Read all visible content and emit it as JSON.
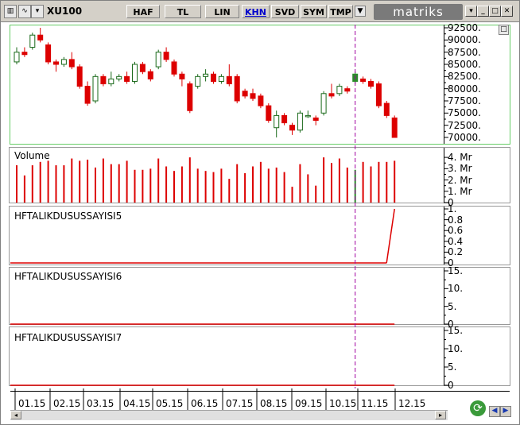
{
  "toolbar": {
    "symbol": "XU100",
    "buttons": [
      {
        "label": "HAF",
        "active": false
      },
      {
        "label": "TL",
        "active": false
      },
      {
        "label": "LIN",
        "active": false
      },
      {
        "label": "KHN",
        "active": true
      },
      {
        "label": "SVD",
        "active": false
      },
      {
        "label": "SYM",
        "active": false
      },
      {
        "label": "TMP",
        "active": false
      }
    ],
    "brand": "matriks"
  },
  "price_axis": [
    "92500.",
    "90000.",
    "87500.",
    "85000.",
    "82500.",
    "80000.",
    "77500.",
    "75000.",
    "72500.",
    "70000."
  ],
  "volume_panel": {
    "title": "Volume",
    "axis": [
      "4. Mr",
      "3. Mr",
      "2. Mr",
      "1. Mr",
      "0"
    ]
  },
  "indicator_panels": [
    {
      "title": "HFTALIKDUSUSSAYISI5",
      "axis": [
        "1.",
        "0.8",
        "0.6",
        "0.4",
        "0.2",
        "0"
      ]
    },
    {
      "title": "HFTALIKDUSUSSAYISI6",
      "axis": [
        "15.",
        "10.",
        "5.",
        "0"
      ]
    },
    {
      "title": "HFTALIKDUSUSSAYISI7",
      "axis": [
        "15.",
        "10.",
        "5.",
        "0"
      ]
    }
  ],
  "x_labels": [
    "01.15",
    "02.15",
    "03.15",
    "04.15",
    "05.15",
    "06.15",
    "07.15",
    "08.15",
    "09.15",
    "10.15",
    "11.15",
    "12.15"
  ],
  "colors": {
    "up": "#ffffff",
    "down": "#dd0000",
    "selected": "#2a8a2a",
    "cursor": "#a000a0",
    "frame": "#66cc66"
  },
  "chart_data": [
    {
      "type": "candlestick",
      "title": "XU100",
      "ylim": [
        70000,
        92500
      ],
      "candles": [
        {
          "o": 85500,
          "c": 87500,
          "h": 88500,
          "l": 85000
        },
        {
          "o": 87500,
          "c": 87000,
          "h": 88500,
          "l": 86500
        },
        {
          "o": 88500,
          "c": 91000,
          "h": 91500,
          "l": 88000
        },
        {
          "o": 91000,
          "c": 90000,
          "h": 92500,
          "l": 89500
        },
        {
          "o": 89000,
          "c": 85500,
          "h": 89500,
          "l": 85000
        },
        {
          "o": 85500,
          "c": 85000,
          "h": 86000,
          "l": 83500
        },
        {
          "o": 85000,
          "c": 86000,
          "h": 86500,
          "l": 84500
        },
        {
          "o": 86000,
          "c": 84500,
          "h": 87500,
          "l": 84000
        },
        {
          "o": 84500,
          "c": 80500,
          "h": 85000,
          "l": 80000
        },
        {
          "o": 80500,
          "c": 77000,
          "h": 81500,
          "l": 76500
        },
        {
          "o": 77500,
          "c": 82500,
          "h": 83000,
          "l": 77000
        },
        {
          "o": 82500,
          "c": 81000,
          "h": 83000,
          "l": 80500
        },
        {
          "o": 81000,
          "c": 82000,
          "h": 83500,
          "l": 80500
        },
        {
          "o": 82000,
          "c": 82500,
          "h": 83000,
          "l": 81500
        },
        {
          "o": 82500,
          "c": 81500,
          "h": 83500,
          "l": 81000
        },
        {
          "o": 81500,
          "c": 85000,
          "h": 85500,
          "l": 81000
        },
        {
          "o": 85000,
          "c": 83500,
          "h": 85500,
          "l": 83000
        },
        {
          "o": 83500,
          "c": 82000,
          "h": 84000,
          "l": 81500
        },
        {
          "o": 84500,
          "c": 87500,
          "h": 88000,
          "l": 84000
        },
        {
          "o": 87500,
          "c": 86000,
          "h": 88500,
          "l": 85500
        },
        {
          "o": 85500,
          "c": 83000,
          "h": 86000,
          "l": 82500
        },
        {
          "o": 83000,
          "c": 82000,
          "h": 83500,
          "l": 80500
        },
        {
          "o": 81000,
          "c": 75500,
          "h": 81500,
          "l": 75000
        },
        {
          "o": 80500,
          "c": 82500,
          "h": 83000,
          "l": 80000
        },
        {
          "o": 82500,
          "c": 83000,
          "h": 84000,
          "l": 81500
        },
        {
          "o": 83000,
          "c": 81500,
          "h": 83500,
          "l": 81000
        },
        {
          "o": 81500,
          "c": 82500,
          "h": 83000,
          "l": 81000
        },
        {
          "o": 82500,
          "c": 81000,
          "h": 85000,
          "l": 80500
        },
        {
          "o": 82500,
          "c": 77500,
          "h": 83000,
          "l": 77000
        },
        {
          "o": 79500,
          "c": 78500,
          "h": 80000,
          "l": 78000
        },
        {
          "o": 79000,
          "c": 78000,
          "h": 80000,
          "l": 77500
        },
        {
          "o": 78500,
          "c": 76500,
          "h": 79000,
          "l": 76000
        },
        {
          "o": 76500,
          "c": 73500,
          "h": 77000,
          "l": 73000
        },
        {
          "o": 72000,
          "c": 74500,
          "h": 75500,
          "l": 70000
        },
        {
          "o": 74500,
          "c": 73000,
          "h": 75000,
          "l": 72500
        },
        {
          "o": 72500,
          "c": 71500,
          "h": 73000,
          "l": 70500
        },
        {
          "o": 71500,
          "c": 75000,
          "h": 75500,
          "l": 71000
        },
        {
          "o": 74500,
          "c": 74500,
          "h": 75500,
          "l": 74000
        },
        {
          "o": 74000,
          "c": 73500,
          "h": 74500,
          "l": 72500
        },
        {
          "o": 75000,
          "c": 79000,
          "h": 79500,
          "l": 74500
        },
        {
          "o": 79000,
          "c": 78500,
          "h": 81000,
          "l": 78000
        },
        {
          "o": 79000,
          "c": 80500,
          "h": 81000,
          "l": 78500
        },
        {
          "o": 80000,
          "c": 79500,
          "h": 80500,
          "l": 79000
        },
        {
          "o": 81500,
          "c": 83000,
          "h": 83500,
          "l": 81000
        },
        {
          "o": 82000,
          "c": 81500,
          "h": 82500,
          "l": 81000
        },
        {
          "o": 81500,
          "c": 80500,
          "h": 82000,
          "l": 80000
        },
        {
          "o": 81000,
          "c": 76500,
          "h": 81500,
          "l": 76000
        },
        {
          "o": 77000,
          "c": 74500,
          "h": 77500,
          "l": 74000
        },
        {
          "o": 74000,
          "c": 70000,
          "h": 74500,
          "l": 70000
        }
      ],
      "selected_index": 43,
      "cursor_index": 43
    },
    {
      "type": "bar",
      "title": "Volume",
      "ylim": [
        0,
        4.5
      ],
      "values": [
        3.3,
        2.4,
        3.3,
        3.6,
        3.7,
        3.3,
        3.3,
        3.9,
        3.7,
        3.8,
        3.1,
        3.9,
        3.4,
        3.4,
        3.7,
        2.9,
        2.9,
        3.0,
        3.9,
        3.2,
        2.8,
        3.2,
        4.0,
        3.0,
        2.8,
        2.7,
        3.0,
        2.1,
        3.4,
        2.6,
        3.2,
        3.6,
        3.0,
        3.1,
        2.7,
        1.4,
        3.4,
        2.5,
        1.5,
        4.0,
        3.5,
        3.9,
        3.1,
        2.9,
        3.6,
        3.2,
        3.6,
        3.6,
        3.7
      ]
    },
    {
      "type": "line",
      "title": "HFTALIKDUSUSSAYISI5",
      "ylim": [
        0,
        1
      ],
      "values": [
        0,
        0,
        0,
        0,
        0,
        0,
        0,
        0,
        0,
        0,
        0,
        0,
        0,
        0,
        0,
        0,
        0,
        0,
        0,
        0,
        0,
        0,
        0,
        0,
        0,
        0,
        0,
        0,
        0,
        0,
        0,
        0,
        0,
        0,
        0,
        0,
        0,
        0,
        0,
        0,
        0,
        0,
        0,
        0,
        0,
        0,
        0,
        0,
        1
      ]
    },
    {
      "type": "line",
      "title": "HFTALIKDUSUSSAYISI6",
      "ylim": [
        0,
        15
      ],
      "values": [
        0,
        0,
        0,
        0,
        0,
        0,
        0,
        0,
        0,
        0,
        0,
        0,
        0,
        0,
        0,
        0,
        0,
        0,
        0,
        0,
        0,
        0,
        0,
        0,
        0,
        0,
        0,
        0,
        0,
        0,
        0,
        0,
        0,
        0,
        0,
        0,
        0,
        0,
        0,
        0,
        0,
        0,
        0,
        0,
        0,
        0,
        0,
        0,
        0
      ]
    },
    {
      "type": "line",
      "title": "HFTALIKDUSUSSAYISI7",
      "ylim": [
        0,
        15
      ],
      "values": [
        0,
        0,
        0,
        0,
        0,
        0,
        0,
        0,
        0,
        0,
        0,
        0,
        0,
        0,
        0,
        0,
        0,
        0,
        0,
        0,
        0,
        0,
        0,
        0,
        0,
        0,
        0,
        0,
        0,
        0,
        0,
        0,
        0,
        0,
        0,
        0,
        0,
        0,
        0,
        0,
        0,
        0,
        0,
        0,
        0,
        0,
        0,
        0,
        0
      ]
    }
  ]
}
